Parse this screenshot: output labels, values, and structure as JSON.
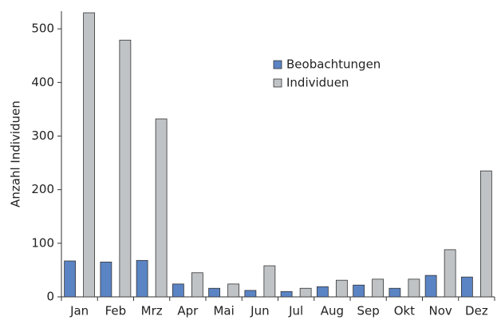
{
  "chart_data": {
    "type": "bar",
    "y_label": "Anzahl Individuen",
    "categories": [
      "Jan",
      "Feb",
      "Mrz",
      "Apr",
      "Mai",
      "Jun",
      "Jul",
      "Aug",
      "Sep",
      "Okt",
      "Nov",
      "Dez"
    ],
    "series": [
      {
        "name": "Beobachtungen",
        "color": "#5b84c4",
        "values": [
          67,
          65,
          68,
          24,
          16,
          12,
          10,
          19,
          22,
          16,
          40,
          37
        ]
      },
      {
        "name": "Individuen",
        "color": "#bfc3c6",
        "values": [
          530,
          479,
          332,
          45,
          24,
          58,
          16,
          31,
          33,
          33,
          88,
          235
        ]
      }
    ],
    "ylim": [
      0,
      533
    ],
    "yticks": [
      0,
      100,
      200,
      300,
      400,
      500
    ],
    "grid": false,
    "legend": "top-center"
  }
}
